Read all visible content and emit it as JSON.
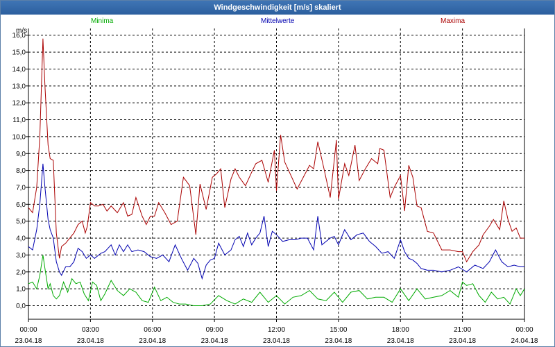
{
  "title": "Windgeschwindigkeit [m/s] skaliert",
  "legend": {
    "min_label": "Minima",
    "avg_label": "Mittelwerte",
    "max_label": "Maxima"
  },
  "colors": {
    "min": "#00aa00",
    "avg": "#0000b0",
    "max": "#aa0000",
    "titlebar": "#2f63a3",
    "grid": "#000000"
  },
  "chart_data": {
    "type": "line",
    "title": "Windgeschwindigkeit [m/s] skaliert",
    "ylabel": "m/s",
    "ylim": [
      -0.8,
      16.4
    ],
    "xlim": [
      0,
      24
    ],
    "y_ticks": [
      0,
      1,
      2,
      3,
      4,
      5,
      6,
      7,
      8,
      9,
      10,
      11,
      12,
      13,
      14,
      15,
      16
    ],
    "y_tick_labels": [
      "0,0",
      "1,0",
      "2,0",
      "3,0",
      "4,0",
      "5,0",
      "6,0",
      "7,0",
      "8,0",
      "9,0",
      "10,0",
      "11,0",
      "12,0",
      "13,0",
      "14,0",
      "15,0",
      "16,0"
    ],
    "x_ticks": [
      {
        "hour": 0,
        "time": "00:00",
        "date": "23.04.18"
      },
      {
        "hour": 3,
        "time": "03:00",
        "date": "23.04.18"
      },
      {
        "hour": 6,
        "time": "06:00",
        "date": "23.04.18"
      },
      {
        "hour": 9,
        "time": "09:00",
        "date": "23.04.18"
      },
      {
        "hour": 12,
        "time": "12:00",
        "date": "23.04.18"
      },
      {
        "hour": 15,
        "time": "15:00",
        "date": "23.04.18"
      },
      {
        "hour": 18,
        "time": "18:00",
        "date": "23.04.18"
      },
      {
        "hour": 21,
        "time": "21:00",
        "date": "23.04.18"
      },
      {
        "hour": 24,
        "time": "00:00",
        "date": "24.04.18"
      }
    ],
    "grid": true,
    "legend_position": "top",
    "series": [
      {
        "name": "Maxima",
        "color": "#aa0000",
        "x": [
          0,
          0.2,
          0.4,
          0.55,
          0.7,
          0.8,
          0.95,
          1.05,
          1.2,
          1.35,
          1.5,
          1.6,
          1.8,
          2.0,
          2.2,
          2.4,
          2.6,
          2.75,
          2.85,
          3.0,
          3.2,
          3.4,
          3.6,
          3.8,
          4.0,
          4.3,
          4.6,
          4.8,
          5.0,
          5.2,
          5.5,
          5.7,
          5.9,
          6.1,
          6.3,
          6.6,
          6.9,
          7.2,
          7.5,
          7.8,
          8.1,
          8.3,
          8.6,
          8.9,
          9.1,
          9.3,
          9.5,
          9.8,
          10.0,
          10.2,
          10.5,
          10.8,
          11.0,
          11.3,
          11.6,
          11.9,
          12.0,
          12.2,
          12.4,
          12.7,
          13.0,
          13.3,
          13.6,
          13.8,
          14.0,
          14.3,
          14.6,
          14.9,
          15.0,
          15.3,
          15.5,
          15.8,
          16.0,
          16.3,
          16.6,
          16.9,
          17.0,
          17.2,
          17.5,
          17.7,
          18.0,
          18.2,
          18.4,
          18.6,
          18.8,
          19.0,
          19.3,
          19.6,
          20.0,
          20.4,
          20.8,
          21.0,
          21.2,
          21.5,
          21.8,
          22.0,
          22.3,
          22.5,
          22.8,
          23.0,
          23.2,
          23.4,
          23.6,
          23.8,
          24.0
        ],
        "y": [
          5.8,
          5.5,
          7.0,
          10.0,
          15.8,
          13.0,
          9.5,
          8.7,
          8.6,
          4.3,
          2.8,
          3.5,
          3.7,
          4.0,
          4.3,
          4.8,
          5.0,
          4.3,
          4.7,
          6.1,
          5.9,
          5.9,
          6.0,
          5.6,
          5.9,
          5.5,
          6.1,
          5.3,
          5.4,
          6.4,
          5.3,
          4.8,
          5.3,
          5.3,
          6.1,
          5.5,
          4.8,
          5.0,
          7.6,
          7.1,
          4.2,
          7.2,
          5.7,
          7.6,
          7.8,
          8.1,
          5.8,
          7.5,
          8.1,
          7.6,
          7.1,
          7.9,
          8.4,
          8.6,
          7.3,
          9.2,
          6.8,
          10.1,
          8.5,
          7.7,
          6.9,
          7.6,
          8.3,
          8.1,
          9.7,
          8.1,
          6.4,
          9.8,
          6.3,
          8.4,
          7.7,
          9.5,
          7.4,
          8.1,
          8.7,
          8.4,
          9.3,
          9.2,
          6.4,
          7.0,
          7.7,
          5.6,
          8.3,
          7.6,
          5.9,
          5.8,
          4.4,
          4.3,
          3.3,
          3.3,
          3.2,
          3.2,
          2.6,
          3.2,
          3.6,
          4.2,
          4.7,
          5.1,
          4.5,
          6.2,
          5.1,
          4.4,
          4.6,
          4.0,
          4.0
        ]
      },
      {
        "name": "Mittelwerte",
        "color": "#0000b0",
        "x": [
          0,
          0.2,
          0.4,
          0.55,
          0.7,
          0.8,
          0.95,
          1.05,
          1.2,
          1.35,
          1.5,
          1.6,
          1.8,
          2.0,
          2.2,
          2.4,
          2.6,
          2.8,
          3.0,
          3.2,
          3.5,
          3.7,
          4.0,
          4.2,
          4.4,
          4.6,
          4.8,
          5.0,
          5.3,
          5.6,
          5.9,
          6.2,
          6.5,
          6.8,
          7.1,
          7.4,
          7.7,
          8.0,
          8.2,
          8.4,
          8.6,
          8.8,
          9.0,
          9.2,
          9.5,
          9.8,
          10.0,
          10.2,
          10.4,
          10.6,
          10.8,
          11.0,
          11.2,
          11.4,
          11.6,
          11.8,
          12.0,
          12.3,
          12.6,
          12.9,
          13.2,
          13.5,
          13.8,
          14.0,
          14.2,
          14.4,
          14.6,
          14.8,
          15.0,
          15.3,
          15.6,
          15.9,
          16.2,
          16.5,
          16.8,
          17.1,
          17.4,
          17.7,
          18.0,
          18.2,
          18.4,
          18.6,
          18.8,
          19.0,
          19.3,
          19.6,
          20.0,
          20.4,
          20.8,
          21.2,
          21.6,
          22.0,
          22.3,
          22.6,
          22.9,
          23.2,
          23.5,
          23.8,
          24.0
        ],
        "y": [
          3.5,
          3.3,
          4.5,
          6.0,
          8.4,
          7.0,
          5.1,
          4.5,
          4.0,
          2.6,
          2.0,
          1.8,
          2.3,
          2.3,
          2.6,
          3.4,
          3.2,
          2.8,
          3.0,
          2.8,
          3.1,
          3.2,
          3.6,
          3.0,
          3.6,
          3.2,
          3.6,
          3.2,
          3.3,
          3.2,
          2.9,
          2.8,
          3.0,
          2.6,
          3.6,
          2.8,
          2.1,
          2.8,
          2.5,
          1.6,
          2.4,
          2.7,
          2.8,
          3.7,
          3.0,
          3.3,
          3.9,
          4.1,
          3.5,
          4.3,
          3.6,
          4.0,
          4.3,
          5.3,
          3.5,
          4.4,
          4.2,
          3.8,
          3.9,
          3.9,
          4.0,
          4.0,
          3.3,
          5.3,
          3.6,
          3.8,
          4.0,
          4.1,
          3.6,
          4.5,
          3.9,
          4.2,
          4.3,
          3.8,
          3.5,
          3.1,
          3.2,
          2.8,
          3.9,
          3.2,
          2.8,
          2.7,
          2.5,
          2.2,
          2.1,
          2.1,
          2.0,
          2.1,
          2.3,
          2.0,
          2.4,
          2.2,
          2.6,
          3.3,
          2.6,
          2.3,
          2.4,
          2.3,
          2.3
        ]
      },
      {
        "name": "Minima",
        "color": "#00aa00",
        "x": [
          0,
          0.2,
          0.4,
          0.55,
          0.7,
          0.8,
          0.95,
          1.05,
          1.2,
          1.35,
          1.5,
          1.7,
          1.9,
          2.1,
          2.3,
          2.5,
          2.7,
          2.9,
          3.1,
          3.3,
          3.5,
          3.7,
          4.0,
          4.3,
          4.6,
          4.9,
          5.2,
          5.5,
          5.8,
          6.1,
          6.4,
          6.7,
          7.0,
          7.3,
          7.6,
          8.0,
          8.4,
          8.8,
          9.2,
          9.6,
          10.0,
          10.4,
          10.8,
          11.2,
          11.6,
          12.0,
          12.4,
          12.8,
          13.2,
          13.6,
          14.0,
          14.4,
          14.8,
          15.2,
          15.6,
          16.0,
          16.4,
          16.8,
          17.2,
          17.6,
          18.0,
          18.4,
          18.8,
          19.2,
          19.6,
          20.0,
          20.4,
          20.8,
          21.0,
          21.2,
          21.5,
          21.8,
          22.1,
          22.4,
          22.7,
          23.0,
          23.3,
          23.6,
          23.8,
          24.0
        ],
        "y": [
          1.3,
          1.4,
          1.0,
          1.8,
          3.0,
          2.2,
          1.0,
          1.3,
          0.6,
          0.4,
          0.6,
          1.4,
          0.8,
          1.6,
          1.3,
          1.4,
          0.7,
          0.3,
          1.4,
          1.2,
          0.3,
          0.7,
          1.5,
          0.9,
          0.6,
          1.0,
          0.8,
          0.3,
          0.2,
          1.1,
          0.3,
          0.5,
          0.2,
          0.1,
          0.1,
          0.0,
          0.0,
          0.1,
          0.6,
          0.3,
          0.1,
          0.4,
          0.2,
          0.8,
          0.2,
          0.6,
          0.1,
          0.5,
          0.6,
          0.9,
          0.4,
          0.3,
          0.8,
          0.2,
          0.8,
          0.9,
          0.4,
          0.5,
          0.5,
          0.2,
          1.0,
          0.3,
          1.0,
          0.4,
          0.5,
          0.6,
          0.9,
          0.5,
          1.4,
          1.2,
          1.3,
          0.6,
          0.2,
          0.8,
          0.4,
          0.5,
          0.1,
          1.0,
          0.6,
          1.0
        ]
      }
    ]
  }
}
